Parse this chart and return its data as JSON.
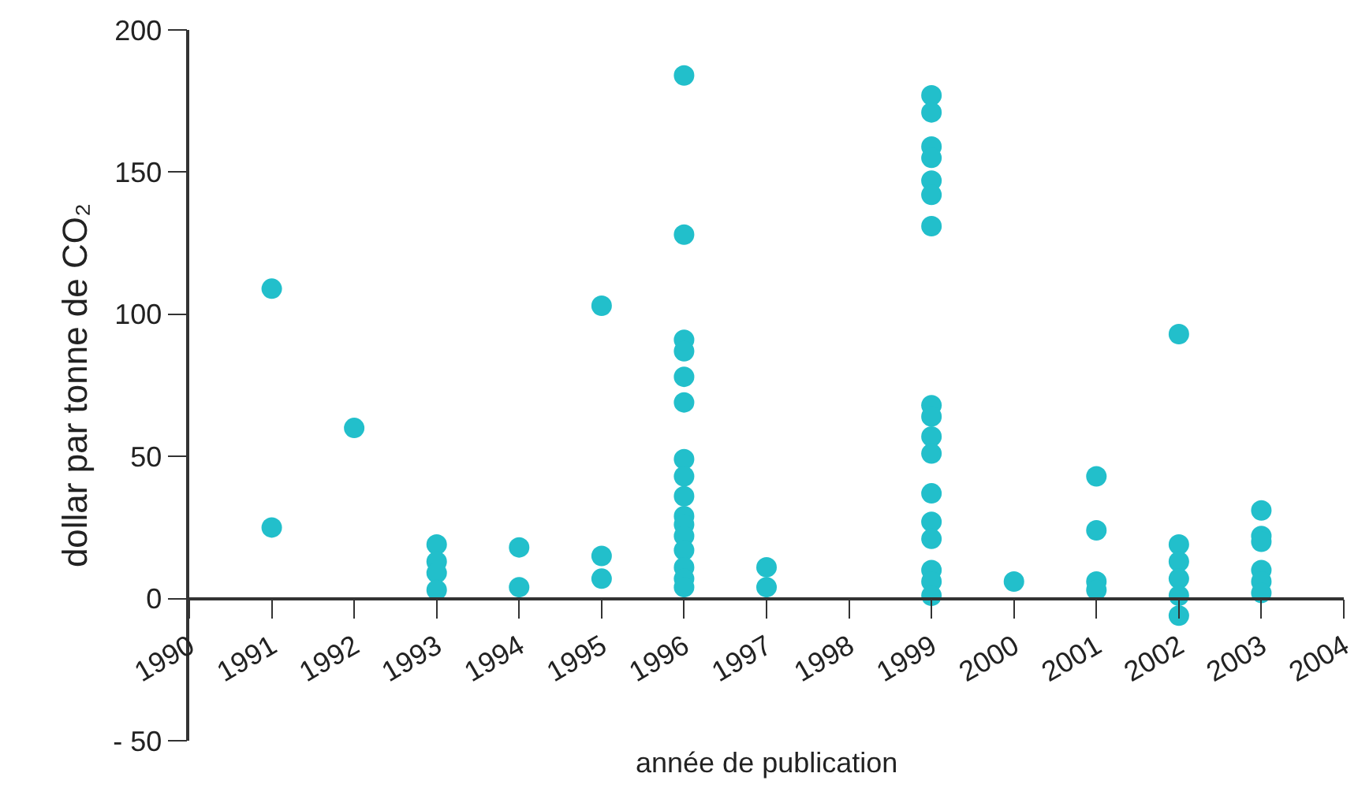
{
  "chart_data": {
    "type": "scatter",
    "xlabel": "année de publication",
    "ylabel": "dollar par tonne de CO₂",
    "x": [
      1991,
      1991,
      1992,
      1993,
      1993,
      1993,
      1993,
      1994,
      1994,
      1995,
      1995,
      1995,
      1996,
      1996,
      1996,
      1996,
      1996,
      1996,
      1996,
      1996,
      1996,
      1996,
      1996,
      1996,
      1996,
      1996,
      1996,
      1996,
      1997,
      1997,
      1999,
      1999,
      1999,
      1999,
      1999,
      1999,
      1999,
      1999,
      1999,
      1999,
      1999,
      1999,
      1999,
      1999,
      1999,
      1999,
      1999,
      2000,
      2001,
      2001,
      2001,
      2001,
      2002,
      2002,
      2002,
      2002,
      2002,
      2002,
      2003,
      2003,
      2003,
      2003,
      2003,
      2003
    ],
    "values": [
      109,
      25,
      60,
      19,
      13,
      9,
      3,
      18,
      4,
      103,
      15,
      7,
      184,
      128,
      91,
      87,
      78,
      69,
      49,
      43,
      36,
      29,
      26,
      22,
      17,
      11,
      7,
      4,
      11,
      4,
      177,
      171,
      159,
      155,
      147,
      142,
      131,
      68,
      64,
      57,
      51,
      37,
      27,
      21,
      10,
      6,
      1,
      6,
      43,
      24,
      6,
      3,
      93,
      19,
      13,
      7,
      1,
      -6,
      31,
      22,
      20,
      10,
      6,
      2
    ],
    "color": "#22bfcb",
    "marker": "circle",
    "grid": false,
    "xlim": [
      1990,
      2004
    ],
    "xticks": [
      1990,
      1991,
      1992,
      1993,
      1994,
      1995,
      1996,
      1997,
      1998,
      1999,
      2000,
      2001,
      2002,
      2003,
      2004
    ],
    "ylim": [
      -50,
      200
    ],
    "yticks": [
      {
        "value": -50,
        "label": "- 50"
      },
      0,
      50,
      100,
      150,
      200
    ]
  }
}
